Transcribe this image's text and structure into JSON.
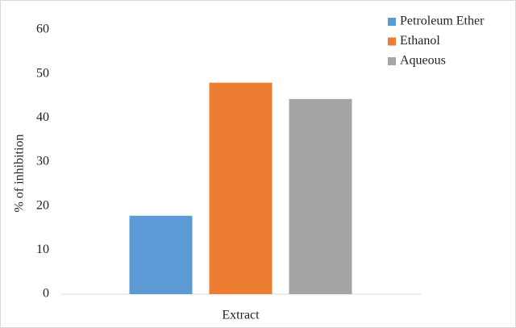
{
  "chart_data": {
    "type": "bar",
    "categories": [
      "Extract"
    ],
    "series": [
      {
        "name": "Petroleum Ether",
        "color": "#5b9bd5",
        "values": [
          17.8
        ]
      },
      {
        "name": "Ethanol",
        "color": "#ed7d31",
        "values": [
          48
        ]
      },
      {
        "name": "Aqueous",
        "color": "#a5a5a5",
        "values": [
          44.3
        ]
      }
    ],
    "y_label": "% of inhibition",
    "ylim": [
      0,
      60
    ],
    "yticks": [
      0,
      10,
      20,
      30,
      40,
      50,
      60
    ],
    "grid": false,
    "legend": "top-right"
  }
}
